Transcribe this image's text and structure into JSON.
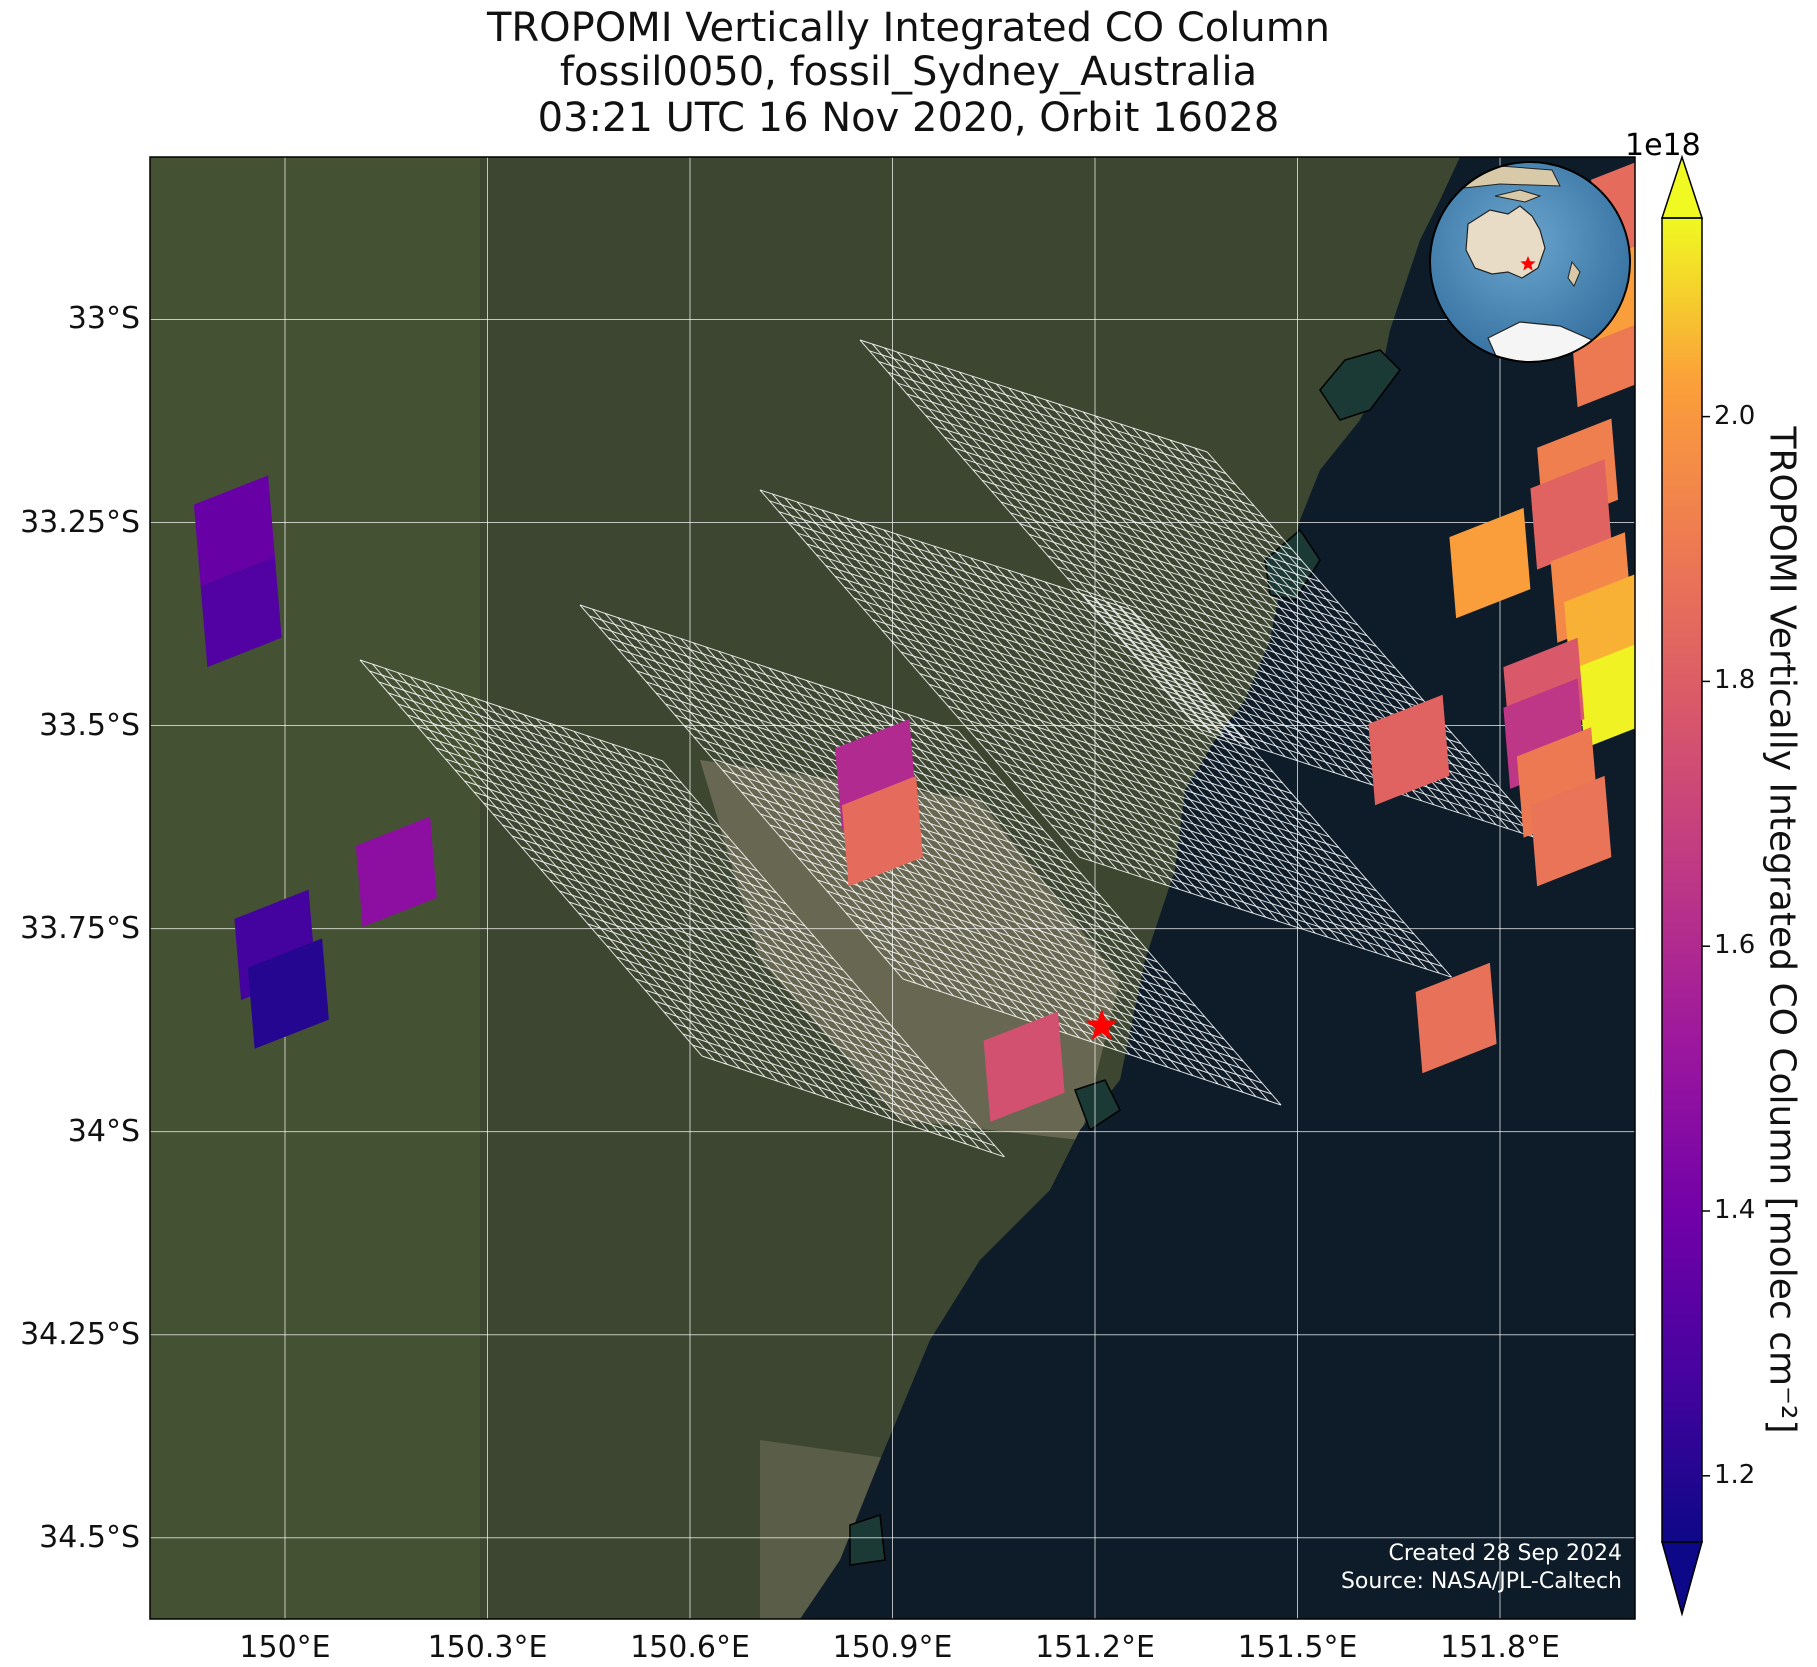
{
  "title": {
    "line1": "TROPOMI Vertically Integrated CO Column",
    "line2": "fossil0050, fossil_Sydney_Australia",
    "line3": "03:21 UTC 16 Nov 2020, Orbit 16028"
  },
  "axes": {
    "lat_ticks": [
      "33°S",
      "33.25°S",
      "33.5°S",
      "33.75°S",
      "34°S",
      "34.25°S",
      "34.5°S"
    ],
    "lat_values": [
      -33.0,
      -33.25,
      -33.5,
      -33.75,
      -34.0,
      -34.25,
      -34.5
    ],
    "lon_ticks": [
      "150°E",
      "150.3°E",
      "150.6°E",
      "150.9°E",
      "151.2°E",
      "151.5°E",
      "151.8°E"
    ],
    "lon_values": [
      150.0,
      150.3,
      150.6,
      150.9,
      151.2,
      151.5,
      151.8
    ],
    "lon_range": [
      149.8,
      152.0
    ],
    "lat_range": [
      -34.6,
      -32.8
    ],
    "gridlines": true
  },
  "colorbar": {
    "label": "TROPOMI Vertically Integrated CO Column [molec cm⁻²]",
    "exponent": "1e18",
    "ticks": [
      "1.2",
      "1.4",
      "1.6",
      "1.8",
      "2.0"
    ],
    "tick_values": [
      1.2,
      1.4,
      1.6,
      1.8,
      2.0
    ],
    "range": [
      1.15,
      2.15
    ],
    "colormap": "plasma",
    "extend": "both"
  },
  "target": {
    "name": "fossil_Sydney_Australia",
    "lon": 151.21,
    "lat": -33.87,
    "marker_color": "#ff0000"
  },
  "annotation": {
    "created": "Created 28 Sep 2024",
    "source": "Source: NASA/JPL-Caltech"
  },
  "colors": {
    "ocean": "#0d1c28",
    "land": "#3c4630",
    "grid": "#ffffff",
    "footprint_outline": "#ffffff"
  },
  "chart_data": {
    "type": "map",
    "units": "molec cm^-2 (x1e18)",
    "pixels": [
      {
        "lon": 149.92,
        "lat": -33.26,
        "value": 1.37
      },
      {
        "lon": 149.93,
        "lat": -33.36,
        "value": 1.31
      },
      {
        "lon": 150.16,
        "lat": -33.68,
        "value": 1.48
      },
      {
        "lon": 149.98,
        "lat": -33.77,
        "value": 1.27
      },
      {
        "lon": 150.0,
        "lat": -33.83,
        "value": 1.2
      },
      {
        "lon": 150.87,
        "lat": -33.56,
        "value": 1.6
      },
      {
        "lon": 150.88,
        "lat": -33.63,
        "value": 1.85
      },
      {
        "lon": 151.09,
        "lat": -33.92,
        "value": 1.75
      },
      {
        "lon": 151.66,
        "lat": -33.53,
        "value": 1.82
      },
      {
        "lon": 151.73,
        "lat": -33.86,
        "value": 1.87
      },
      {
        "lon": 151.78,
        "lat": -33.3,
        "value": 2.02
      },
      {
        "lon": 151.91,
        "lat": -33.19,
        "value": 1.92
      },
      {
        "lon": 151.9,
        "lat": -33.24,
        "value": 1.82
      },
      {
        "lon": 151.93,
        "lat": -33.33,
        "value": 1.95
      },
      {
        "lon": 151.95,
        "lat": -33.38,
        "value": 2.05
      },
      {
        "lon": 151.97,
        "lat": -33.46,
        "value": 2.14
      },
      {
        "lon": 151.86,
        "lat": -33.46,
        "value": 1.78
      },
      {
        "lon": 151.86,
        "lat": -33.51,
        "value": 1.65
      },
      {
        "lon": 151.88,
        "lat": -33.57,
        "value": 1.9
      },
      {
        "lon": 151.9,
        "lat": -33.63,
        "value": 1.88
      },
      {
        "lon": 151.96,
        "lat": -33.04,
        "value": 1.9
      },
      {
        "lon": 151.98,
        "lat": -32.96,
        "value": 2.02
      },
      {
        "lon": 151.99,
        "lat": -32.86,
        "value": 1.85
      }
    ]
  }
}
